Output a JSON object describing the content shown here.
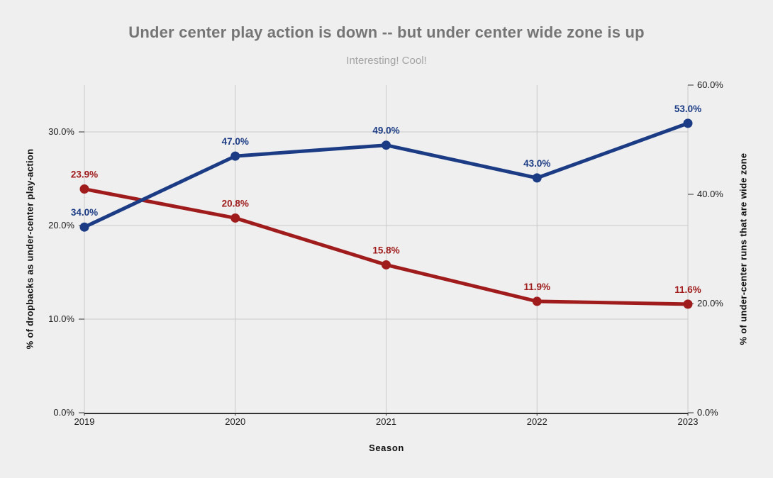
{
  "chart_data": {
    "type": "line",
    "title": "Under center play action is down -- but under center wide zone is up",
    "subtitle": "Interesting! Cool!",
    "grid": true,
    "legend": "none",
    "background_color": "#efefef",
    "gridline_color": "#c9c9c9",
    "axis_line_color": "#333333",
    "x": {
      "title": "Season",
      "categories": [
        "2019",
        "2020",
        "2021",
        "2022",
        "2023"
      ]
    },
    "axes": {
      "left": {
        "title": "% of dropbacks as under-center play-action",
        "range": [
          0,
          35
        ],
        "ticks": [
          {
            "value": 0,
            "label": "0.0%"
          },
          {
            "value": 10,
            "label": "10.0%"
          },
          {
            "value": 20,
            "label": "20.0%"
          },
          {
            "value": 30,
            "label": "30.0%"
          }
        ]
      },
      "right": {
        "title": "% of under-center runs that are wide zone",
        "range": [
          0,
          60
        ],
        "ticks": [
          {
            "value": 0,
            "label": "0.0%"
          },
          {
            "value": 20,
            "label": "20.0%"
          },
          {
            "value": 40,
            "label": "40.0%"
          },
          {
            "value": 60,
            "label": "60.0%"
          }
        ]
      }
    },
    "series": [
      {
        "name": "% of dropbacks as under-center play-action",
        "axis": "left",
        "color": "#a01c1c",
        "values": [
          23.9,
          20.8,
          15.8,
          11.9,
          11.6
        ],
        "labels": [
          "23.9%",
          "20.8%",
          "15.8%",
          "11.9%",
          "11.6%"
        ]
      },
      {
        "name": "% of under-center runs that are wide zone",
        "axis": "right",
        "color": "#1b3c85",
        "values": [
          34.0,
          47.0,
          49.0,
          43.0,
          53.0
        ],
        "labels": [
          "34.0%",
          "47.0%",
          "49.0%",
          "43.0%",
          "53.0%"
        ]
      }
    ]
  }
}
